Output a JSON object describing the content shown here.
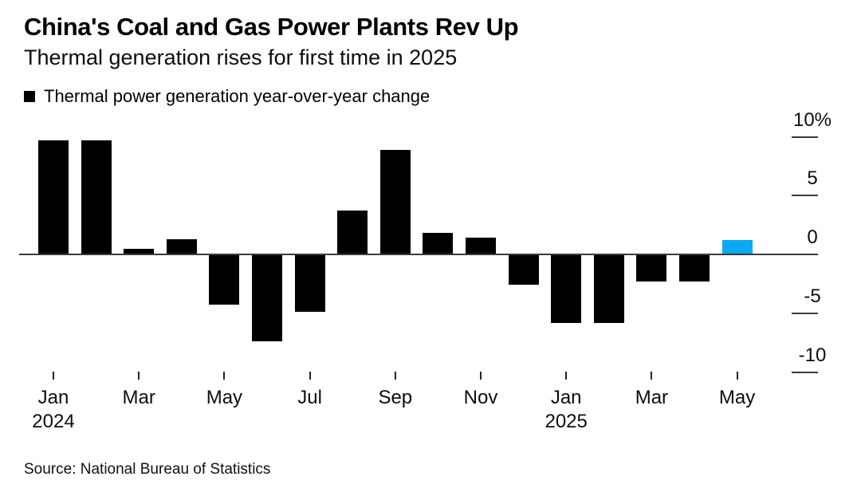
{
  "header": {
    "title": "China's Coal and Gas Power Plants Rev Up",
    "subtitle": "Thermal generation rises for first time in 2025"
  },
  "legend": {
    "label": "Thermal power generation year-over-year change",
    "swatch_color": "#000000"
  },
  "chart_data": {
    "type": "bar",
    "title": "China's Coal and Gas Power Plants Rev Up",
    "subtitle": "Thermal generation rises for first time in 2025",
    "categories": [
      "Jan 2024",
      "Feb 2024",
      "Mar 2024",
      "Apr 2024",
      "May 2024",
      "Jun 2024",
      "Jul 2024",
      "Aug 2024",
      "Sep 2024",
      "Oct 2024",
      "Nov 2024",
      "Dec 2024",
      "Jan 2025",
      "Feb 2025",
      "Mar 2025",
      "Apr 2025",
      "May 2025"
    ],
    "series": [
      {
        "name": "Thermal power generation year-over-year change",
        "values": [
          9.7,
          9.7,
          0.5,
          1.3,
          -4.3,
          -7.4,
          -4.9,
          3.7,
          8.9,
          1.8,
          1.4,
          -2.6,
          -5.8,
          -5.8,
          -2.3,
          -2.3,
          1.2
        ]
      }
    ],
    "unit": "%",
    "ylabel": "",
    "xlabel": "",
    "ylim": [
      -10,
      10
    ],
    "y_ticks": [
      10,
      5,
      0,
      -5,
      -10
    ],
    "y_tick_labels": [
      "10%",
      "5",
      "0",
      "-5",
      "-10"
    ],
    "y_axis_side": "right",
    "x_tick_labels": [
      {
        "index": 0,
        "label": "Jan",
        "year": "2024"
      },
      {
        "index": 2,
        "label": "Mar"
      },
      {
        "index": 4,
        "label": "May"
      },
      {
        "index": 6,
        "label": "Jul"
      },
      {
        "index": 8,
        "label": "Sep"
      },
      {
        "index": 10,
        "label": "Nov"
      },
      {
        "index": 12,
        "label": "Jan",
        "year": "2025"
      },
      {
        "index": 14,
        "label": "Mar"
      },
      {
        "index": 16,
        "label": "May"
      }
    ],
    "bar_colors": {
      "default": "#000000",
      "highlight": "#0ba9f2"
    },
    "highlight_index": 16,
    "grid": false,
    "legend_position": "top-left"
  },
  "source": "Source: National Bureau of Statistics"
}
